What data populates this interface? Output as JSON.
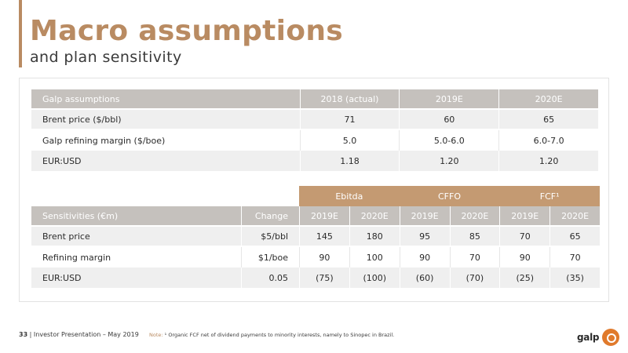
{
  "header": {
    "title": "Macro assumptions",
    "subtitle": "and plan sensitivity"
  },
  "assumptions": {
    "headers": [
      "Galp assumptions",
      "2018 (actual)",
      "2019E",
      "2020E"
    ],
    "rows": [
      [
        "Brent price ($/bbl)",
        "71",
        "60",
        "65"
      ],
      [
        "Galp refining margin ($/boe)",
        "5.0",
        "5.0-6.0",
        "6.0-7.0"
      ],
      [
        "EUR:USD",
        "1.18",
        "1.20",
        "1.20"
      ]
    ]
  },
  "sensitivities": {
    "groups": [
      "Ebitda",
      "CFFO",
      "FCF¹"
    ],
    "headers": [
      "Sensitivities (€m)",
      "Change",
      "2019E",
      "2020E",
      "2019E",
      "2020E",
      "2019E",
      "2020E"
    ],
    "rows": [
      [
        "Brent price",
        "$5/bbl",
        "145",
        "180",
        "95",
        "85",
        "70",
        "65"
      ],
      [
        "Refining margin",
        "$1/boe",
        "90",
        "100",
        "90",
        "70",
        "90",
        "70"
      ],
      [
        "EUR:USD",
        "0.05",
        "(75)",
        "(100)",
        "(60)",
        "(70)",
        "(25)",
        "(35)"
      ]
    ]
  },
  "footer": {
    "page_number": "33",
    "text": " | Investor Presentation – May 2019",
    "note_label": "Note: ",
    "note_text": "¹ Organic FCF net of dividend payments to minority interests, namely to Sinopec in Brazil."
  },
  "logo": {
    "text": "galp"
  },
  "colors": {
    "accent": "#b98b62",
    "header_gray": "#c5c1bd",
    "group_header": "#c49a72",
    "logo_orange": "#e07a2c"
  }
}
